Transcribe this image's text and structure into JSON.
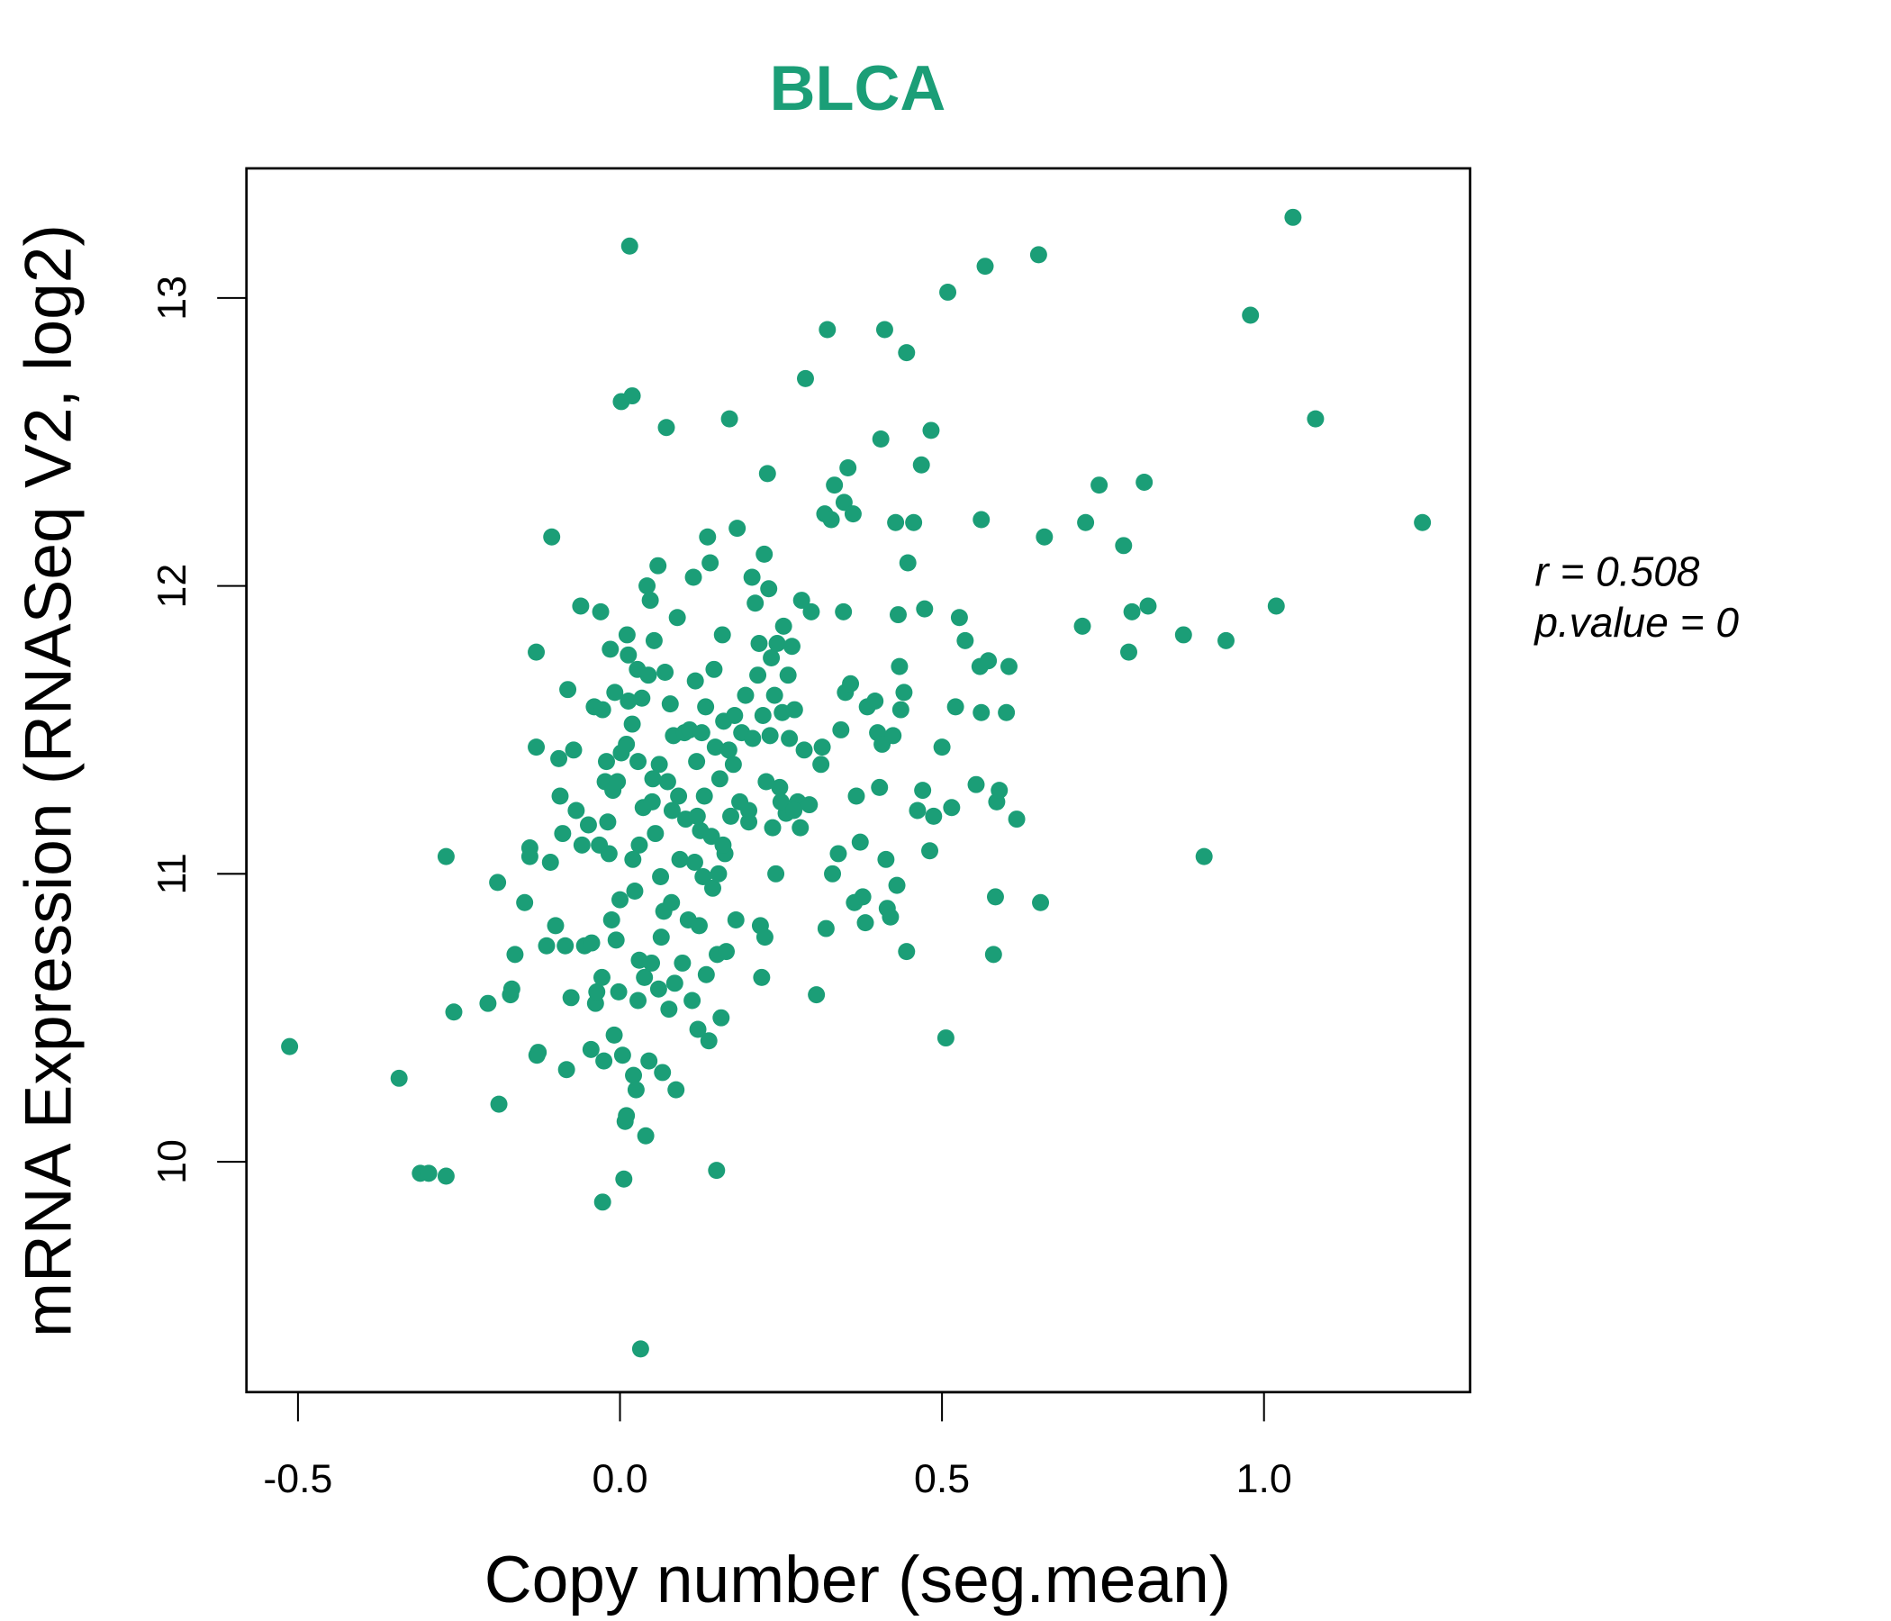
{
  "chart_data": {
    "type": "scatter",
    "title": "BLCA",
    "xlabel": "Copy number (seg.mean)",
    "ylabel": "mRNA Expression (RNASeq V2, log2)",
    "xlim": [
      -0.58,
      1.32
    ],
    "ylim": [
      9.2,
      13.45
    ],
    "xticks": [
      -0.5,
      0.0,
      0.5,
      1.0
    ],
    "xtick_labels": [
      "-0.5",
      "0.0",
      "0.5",
      "1.0"
    ],
    "yticks": [
      10,
      11,
      12,
      13
    ],
    "ytick_labels": [
      "10",
      "11",
      "12",
      "13"
    ],
    "grid": false,
    "color": "#1b9e77",
    "annotations": {
      "r": "r = 0.508",
      "p": "p.value = 0"
    },
    "points": [
      [
        -0.513,
        10.4
      ],
      [
        -0.343,
        10.29
      ],
      [
        -0.31,
        9.96
      ],
      [
        -0.297,
        9.96
      ],
      [
        -0.27,
        9.95
      ],
      [
        -0.27,
        11.06
      ],
      [
        -0.258,
        10.52
      ],
      [
        -0.205,
        10.55
      ],
      [
        -0.188,
        10.2
      ],
      [
        -0.19,
        10.97
      ],
      [
        -0.17,
        10.58
      ],
      [
        -0.168,
        10.6
      ],
      [
        -0.163,
        10.72
      ],
      [
        -0.148,
        10.9
      ],
      [
        -0.14,
        11.09
      ],
      [
        -0.14,
        11.06
      ],
      [
        -0.13,
        11.44
      ],
      [
        -0.13,
        11.77
      ],
      [
        -0.129,
        10.37
      ],
      [
        -0.127,
        10.38
      ],
      [
        -0.114,
        10.75
      ],
      [
        -0.108,
        11.04
      ],
      [
        -0.106,
        12.17
      ],
      [
        -0.1,
        10.82
      ],
      [
        -0.095,
        11.4
      ],
      [
        -0.093,
        11.27
      ],
      [
        -0.089,
        11.14
      ],
      [
        -0.085,
        10.75
      ],
      [
        -0.083,
        10.32
      ],
      [
        -0.081,
        11.64
      ],
      [
        -0.076,
        10.57
      ],
      [
        -0.072,
        11.43
      ],
      [
        -0.068,
        11.22
      ],
      [
        -0.061,
        11.93
      ],
      [
        -0.059,
        11.1
      ],
      [
        -0.055,
        10.75
      ],
      [
        -0.049,
        11.17
      ],
      [
        -0.045,
        10.39
      ],
      [
        -0.044,
        10.76
      ],
      [
        -0.04,
        11.58
      ],
      [
        -0.038,
        10.55
      ],
      [
        -0.036,
        10.59
      ],
      [
        -0.032,
        11.1
      ],
      [
        -0.03,
        11.91
      ],
      [
        -0.027,
        9.86
      ],
      [
        -0.027,
        11.57
      ],
      [
        -0.028,
        10.64
      ],
      [
        -0.025,
        10.35
      ],
      [
        -0.023,
        11.32
      ],
      [
        -0.021,
        11.39
      ],
      [
        -0.019,
        11.18
      ],
      [
        -0.017,
        11.07
      ],
      [
        -0.015,
        11.78
      ],
      [
        -0.013,
        10.84
      ],
      [
        -0.011,
        11.29
      ],
      [
        -0.009,
        10.44
      ],
      [
        -0.008,
        11.63
      ],
      [
        -0.006,
        10.77
      ],
      [
        -0.004,
        11.32
      ],
      [
        -0.002,
        10.59
      ],
      [
        0.0,
        10.91
      ],
      [
        0.002,
        12.64
      ],
      [
        0.002,
        11.42
      ],
      [
        0.004,
        10.37
      ],
      [
        0.006,
        9.94
      ],
      [
        0.008,
        10.14
      ],
      [
        0.01,
        10.16
      ],
      [
        0.011,
        11.83
      ],
      [
        0.013,
        11.6
      ],
      [
        0.013,
        11.76
      ],
      [
        0.015,
        13.18
      ],
      [
        0.019,
        12.66
      ],
      [
        0.019,
        11.52
      ],
      [
        0.021,
        10.3
      ],
      [
        0.023,
        10.94
      ],
      [
        0.025,
        10.25
      ],
      [
        0.027,
        11.71
      ],
      [
        0.028,
        11.39
      ],
      [
        0.028,
        10.56
      ],
      [
        0.03,
        11.1
      ],
      [
        0.032,
        9.35
      ],
      [
        0.034,
        11.61
      ],
      [
        0.036,
        11.23
      ],
      [
        0.038,
        10.64
      ],
      [
        0.04,
        10.09
      ],
      [
        0.042,
        12.0
      ],
      [
        0.044,
        11.69
      ],
      [
        0.045,
        10.35
      ],
      [
        0.047,
        11.95
      ],
      [
        0.049,
        10.69
      ],
      [
        0.051,
        11.33
      ],
      [
        0.053,
        11.81
      ],
      [
        0.055,
        11.14
      ],
      [
        0.059,
        12.07
      ],
      [
        0.061,
        11.38
      ],
      [
        0.063,
        10.99
      ],
      [
        0.064,
        10.78
      ],
      [
        0.066,
        10.31
      ],
      [
        0.068,
        10.87
      ],
      [
        0.07,
        11.7
      ],
      [
        0.072,
        12.55
      ],
      [
        0.074,
        11.32
      ],
      [
        0.076,
        10.53
      ],
      [
        0.078,
        11.59
      ],
      [
        0.08,
        10.9
      ],
      [
        0.081,
        11.22
      ],
      [
        0.083,
        11.48
      ],
      [
        0.085,
        10.62
      ],
      [
        0.087,
        10.25
      ],
      [
        0.089,
        11.89
      ],
      [
        0.091,
        11.27
      ],
      [
        0.093,
        11.05
      ],
      [
        0.097,
        10.69
      ],
      [
        0.1,
        11.49
      ],
      [
        0.102,
        11.19
      ],
      [
        0.106,
        10.84
      ],
      [
        0.108,
        11.5
      ],
      [
        0.112,
        10.56
      ],
      [
        0.114,
        12.03
      ],
      [
        0.116,
        11.04
      ],
      [
        0.117,
        11.67
      ],
      [
        0.119,
        11.39
      ],
      [
        0.121,
        10.46
      ],
      [
        0.123,
        10.82
      ],
      [
        0.125,
        11.15
      ],
      [
        0.127,
        11.49
      ],
      [
        0.129,
        10.99
      ],
      [
        0.131,
        11.27
      ],
      [
        0.133,
        11.58
      ],
      [
        0.134,
        10.65
      ],
      [
        0.136,
        12.17
      ],
      [
        0.138,
        10.42
      ],
      [
        0.14,
        12.08
      ],
      [
        0.142,
        11.13
      ],
      [
        0.144,
        10.95
      ],
      [
        0.146,
        11.71
      ],
      [
        0.148,
        11.44
      ],
      [
        0.15,
        9.97
      ],
      [
        0.151,
        10.72
      ],
      [
        0.153,
        11.0
      ],
      [
        0.155,
        11.33
      ],
      [
        0.157,
        10.5
      ],
      [
        0.159,
        11.83
      ],
      [
        0.161,
        11.53
      ],
      [
        0.163,
        11.07
      ],
      [
        0.165,
        10.73
      ],
      [
        0.169,
        11.43
      ],
      [
        0.17,
        12.58
      ],
      [
        0.172,
        11.2
      ],
      [
        0.176,
        11.38
      ],
      [
        0.178,
        11.55
      ],
      [
        0.18,
        10.84
      ],
      [
        0.182,
        12.2
      ],
      [
        0.186,
        11.25
      ],
      [
        0.189,
        11.49
      ],
      [
        0.195,
        11.62
      ],
      [
        0.2,
        11.22
      ],
      [
        0.205,
        12.03
      ],
      [
        0.206,
        11.47
      ],
      [
        0.21,
        11.94
      ],
      [
        0.214,
        11.69
      ],
      [
        0.216,
        11.8
      ],
      [
        0.218,
        10.82
      ],
      [
        0.22,
        10.64
      ],
      [
        0.222,
        11.55
      ],
      [
        0.224,
        12.11
      ],
      [
        0.225,
        10.78
      ],
      [
        0.227,
        11.32
      ],
      [
        0.229,
        12.39
      ],
      [
        0.231,
        11.99
      ],
      [
        0.233,
        11.48
      ],
      [
        0.235,
        11.75
      ],
      [
        0.237,
        11.16
      ],
      [
        0.24,
        11.62
      ],
      [
        0.242,
        11.0
      ],
      [
        0.244,
        11.8
      ],
      [
        0.248,
        11.3
      ],
      [
        0.252,
        11.56
      ],
      [
        0.254,
        11.86
      ],
      [
        0.258,
        11.21
      ],
      [
        0.261,
        11.69
      ],
      [
        0.263,
        11.47
      ],
      [
        0.267,
        11.79
      ],
      [
        0.271,
        11.57
      ],
      [
        0.276,
        11.25
      ],
      [
        0.28,
        11.16
      ],
      [
        0.282,
        11.95
      ],
      [
        0.286,
        11.43
      ],
      [
        0.288,
        12.72
      ],
      [
        0.294,
        11.24
      ],
      [
        0.297,
        11.91
      ],
      [
        0.305,
        10.58
      ],
      [
        0.312,
        11.38
      ],
      [
        0.314,
        11.44
      ],
      [
        0.318,
        12.25
      ],
      [
        0.32,
        10.81
      ],
      [
        0.322,
        12.89
      ],
      [
        0.328,
        12.23
      ],
      [
        0.33,
        11.0
      ],
      [
        0.333,
        12.35
      ],
      [
        0.339,
        11.07
      ],
      [
        0.343,
        11.5
      ],
      [
        0.347,
        11.91
      ],
      [
        0.348,
        12.29
      ],
      [
        0.35,
        11.63
      ],
      [
        0.354,
        12.41
      ],
      [
        0.358,
        11.66
      ],
      [
        0.362,
        12.25
      ],
      [
        0.364,
        10.9
      ],
      [
        0.367,
        11.27
      ],
      [
        0.373,
        11.11
      ],
      [
        0.377,
        10.92
      ],
      [
        0.381,
        10.83
      ],
      [
        0.384,
        11.58
      ],
      [
        0.396,
        11.6
      ],
      [
        0.4,
        11.49
      ],
      [
        0.403,
        11.3
      ],
      [
        0.405,
        12.51
      ],
      [
        0.407,
        11.45
      ],
      [
        0.411,
        12.89
      ],
      [
        0.413,
        11.05
      ],
      [
        0.415,
        10.88
      ],
      [
        0.42,
        10.85
      ],
      [
        0.424,
        11.48
      ],
      [
        0.428,
        12.22
      ],
      [
        0.43,
        10.96
      ],
      [
        0.432,
        11.9
      ],
      [
        0.434,
        11.72
      ],
      [
        0.436,
        11.57
      ],
      [
        0.441,
        11.63
      ],
      [
        0.445,
        12.81
      ],
      [
        0.445,
        10.73
      ],
      [
        0.447,
        12.08
      ],
      [
        0.456,
        12.22
      ],
      [
        0.462,
        11.22
      ],
      [
        0.468,
        12.42
      ],
      [
        0.47,
        11.29
      ],
      [
        0.473,
        11.92
      ],
      [
        0.481,
        11.08
      ],
      [
        0.483,
        12.54
      ],
      [
        0.487,
        11.2
      ],
      [
        0.5,
        11.44
      ],
      [
        0.506,
        10.43
      ],
      [
        0.509,
        13.02
      ],
      [
        0.515,
        11.23
      ],
      [
        0.521,
        11.58
      ],
      [
        0.527,
        11.89
      ],
      [
        0.536,
        11.81
      ],
      [
        0.553,
        11.31
      ],
      [
        0.559,
        11.72
      ],
      [
        0.561,
        11.56
      ],
      [
        0.561,
        12.23
      ],
      [
        0.567,
        13.11
      ],
      [
        0.572,
        11.74
      ],
      [
        0.58,
        10.72
      ],
      [
        0.583,
        10.92
      ],
      [
        0.585,
        11.25
      ],
      [
        0.589,
        11.29
      ],
      [
        0.6,
        11.56
      ],
      [
        0.604,
        11.72
      ],
      [
        0.616,
        11.19
      ],
      [
        0.65,
        13.15
      ],
      [
        0.653,
        10.9
      ],
      [
        0.659,
        12.17
      ],
      [
        0.718,
        11.86
      ],
      [
        0.723,
        12.22
      ],
      [
        0.744,
        12.35
      ],
      [
        0.782,
        12.14
      ],
      [
        0.79,
        11.77
      ],
      [
        0.795,
        11.91
      ],
      [
        0.814,
        12.36
      ],
      [
        0.82,
        11.93
      ],
      [
        0.875,
        11.83
      ],
      [
        0.907,
        11.06
      ],
      [
        0.941,
        11.81
      ],
      [
        0.979,
        12.94
      ],
      [
        1.019,
        11.93
      ],
      [
        1.045,
        13.28
      ],
      [
        1.08,
        12.58
      ],
      [
        1.246,
        12.22
      ],
      [
        0.01,
        11.45
      ],
      [
        0.02,
        11.05
      ],
      [
        0.03,
        10.7
      ],
      [
        0.05,
        11.25
      ],
      [
        0.06,
        10.6
      ],
      [
        0.12,
        11.2
      ],
      [
        0.16,
        11.1
      ],
      [
        0.2,
        11.18
      ],
      [
        0.25,
        11.25
      ],
      [
        0.27,
        11.22
      ]
    ]
  }
}
